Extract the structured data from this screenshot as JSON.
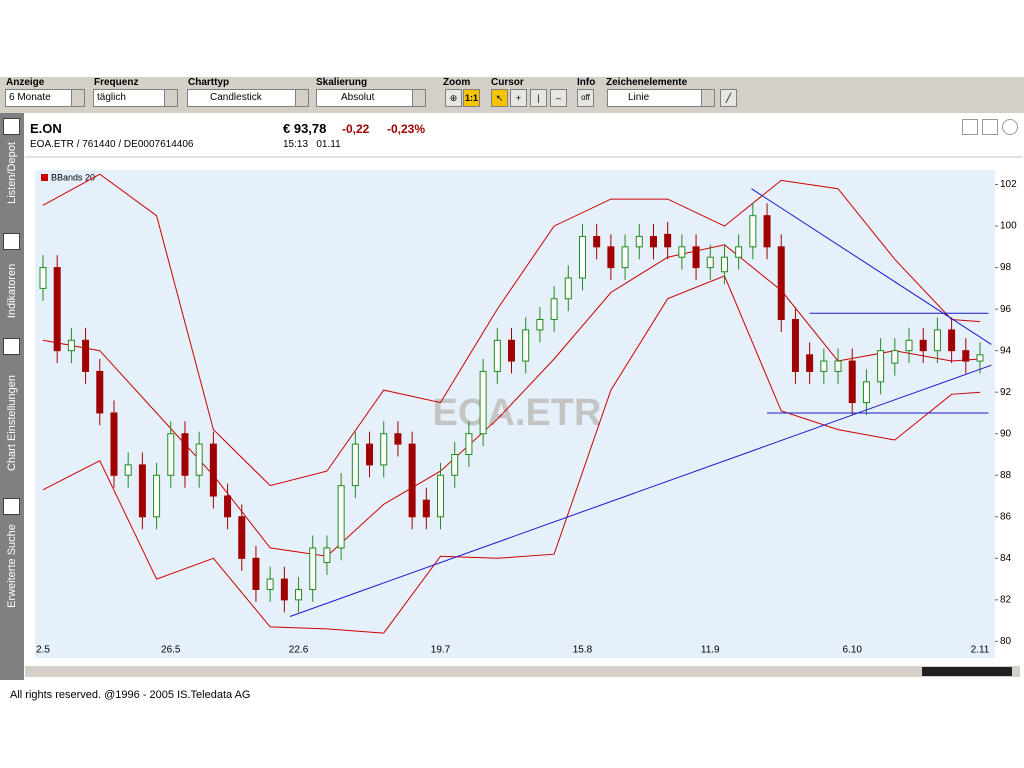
{
  "toolbar": {
    "labels": [
      "Anzeige",
      "Frequenz",
      "Charttyp",
      "Skalierung",
      "Zoom",
      "Cursor",
      "Info",
      "Zeichenelemente"
    ],
    "anzeige": "6 Monate",
    "frequenz": "täglich",
    "charttyp": "Candlestick",
    "skalierung": "Absolut",
    "zoom": "1:1",
    "info": "off",
    "zeichenelemente": "Linie"
  },
  "sidebar": [
    "Listen/Depot",
    "Indikatoren",
    "Chart Einstellungen",
    "Erweiterte Suche"
  ],
  "quote": {
    "name": "E.ON",
    "ids": "EOA.ETR  /  761440  /  DE0007614406",
    "price": "€ 93,78",
    "change": "-0,22",
    "change_pct": "-0,23%",
    "time": "15:13   01.11"
  },
  "footer": "All rights reserved. @1996 - 2005 IS.Teledata AG",
  "chart_data": {
    "type": "candlestick",
    "watermark": "EOA.ETR",
    "categories": [
      "2.5",
      null,
      null,
      null,
      null,
      null,
      null,
      null,
      null,
      "26.5",
      null,
      null,
      null,
      null,
      null,
      null,
      null,
      null,
      "22.6",
      null,
      null,
      null,
      null,
      null,
      null,
      null,
      null,
      null,
      "19.7",
      null,
      null,
      null,
      null,
      null,
      null,
      null,
      null,
      null,
      "15.8",
      null,
      null,
      null,
      null,
      null,
      null,
      null,
      null,
      "11.9",
      null,
      null,
      null,
      null,
      null,
      null,
      null,
      null,
      null,
      "6.10",
      null,
      null,
      null,
      null,
      null,
      null,
      null,
      null,
      "2.11"
    ],
    "open": [
      97,
      98,
      94,
      94.5,
      93,
      91,
      88,
      88.5,
      86,
      88,
      90,
      88,
      89.5,
      87,
      86,
      84,
      82.5,
      83,
      82,
      82.5,
      83.8,
      84.5,
      87.5,
      89.5,
      88.5,
      90,
      89.5,
      86.8,
      86,
      88,
      89,
      90,
      93,
      94.5,
      93.5,
      95,
      95.5,
      96.5,
      97.5,
      99.5,
      99,
      98,
      99,
      99.5,
      99.6,
      98.5,
      99,
      98,
      97.8,
      98.5,
      99,
      100.5,
      99,
      95.5,
      93.8,
      93,
      93,
      93.5,
      91.5,
      92.5,
      93.4,
      94,
      94.5,
      94,
      95,
      94,
      93.5
    ],
    "high": [
      98.6,
      98.6,
      95.1,
      95.1,
      93.6,
      91.6,
      89.1,
      89.1,
      88.6,
      90.6,
      90.6,
      90.1,
      90.1,
      87.6,
      86.6,
      84.6,
      83.6,
      83.6,
      83.1,
      85.1,
      85.1,
      88.1,
      90.1,
      90.1,
      90.6,
      90.6,
      90.1,
      87.4,
      88.6,
      89.6,
      90.6,
      93.6,
      95.1,
      95.1,
      95.6,
      96.1,
      97.1,
      98.1,
      100.1,
      100.1,
      99.6,
      99.6,
      100.1,
      100.1,
      100.2,
      99.6,
      99.6,
      99.1,
      99.1,
      99.6,
      101.1,
      101.1,
      99.6,
      96.1,
      94.4,
      94.1,
      94.1,
      94.1,
      93.1,
      94.6,
      94.6,
      95.1,
      95.1,
      95.6,
      95.6,
      94.6,
      94.4
    ],
    "low": [
      96.4,
      93.4,
      93.4,
      92.4,
      90.4,
      87.4,
      87.4,
      85.4,
      85.4,
      87.4,
      87.4,
      87.4,
      86.4,
      85.4,
      83.4,
      81.9,
      81.9,
      81.4,
      81.4,
      81.9,
      83.2,
      83.9,
      86.9,
      87.9,
      87.9,
      88.9,
      85.4,
      85.4,
      85.4,
      87.4,
      88.4,
      89.4,
      92.4,
      92.9,
      92.9,
      94.4,
      94.9,
      95.9,
      96.9,
      98.4,
      97.4,
      97.4,
      98.4,
      98.4,
      98.4,
      97.9,
      97.4,
      97.4,
      97.2,
      97.9,
      98.4,
      98.4,
      94.9,
      92.4,
      92.4,
      92.4,
      92.4,
      90.9,
      90.9,
      91.9,
      92.8,
      93.4,
      93.4,
      93.4,
      93.4,
      92.9,
      92.9
    ],
    "close": [
      98,
      94,
      94.5,
      93,
      91,
      88,
      88.5,
      86,
      88,
      90,
      88,
      89.5,
      87,
      86,
      84,
      82.5,
      83,
      82,
      82.5,
      84.5,
      84.5,
      87.5,
      89.5,
      88.5,
      90,
      89.5,
      86,
      86,
      88,
      89,
      90,
      93,
      94.5,
      93.5,
      95,
      95.5,
      96.5,
      97.5,
      99.5,
      99,
      98,
      99,
      99.5,
      99,
      99,
      99,
      98,
      98.5,
      98.5,
      99,
      100.5,
      99,
      95.5,
      93,
      93,
      93.5,
      93.5,
      91.5,
      92.5,
      94,
      94,
      94.5,
      94,
      95,
      94,
      93.5,
      93.8
    ],
    "up_color": "#1e8c1e",
    "down_color": "#a00000",
    "bands": {
      "name": "BBands 20",
      "color": "#cc0000",
      "x": [
        0,
        4,
        8,
        12,
        16,
        20,
        24,
        28,
        32,
        36,
        40,
        44,
        48,
        52,
        56,
        60,
        64,
        66
      ],
      "upper": [
        101,
        102.5,
        100.5,
        90.2,
        87.5,
        88.2,
        92.1,
        91.5,
        96,
        100,
        101.3,
        101.3,
        100,
        102.2,
        101.8,
        98.4,
        95.5,
        95.4
      ],
      "middle": [
        94.5,
        94,
        91,
        88,
        84.5,
        84.1,
        86.6,
        88.2,
        90.7,
        93.6,
        96.8,
        98.5,
        99.1,
        96.9,
        93.5,
        94,
        93.5,
        93.6
      ],
      "lower": [
        87.3,
        88.7,
        83,
        84,
        80.7,
        80.6,
        80.4,
        84.1,
        84,
        84.2,
        92.1,
        96.5,
        97.6,
        91.1,
        90.2,
        89.7,
        91.9,
        92
      ]
    },
    "trendlines": [
      {
        "color": "#1a1acc",
        "x": [
          17.4,
          66.8
        ],
        "y": [
          81.2,
          93.3
        ]
      },
      {
        "color": "#1a1acc",
        "x": [
          49.9,
          66.8
        ],
        "y": [
          101.8,
          94.3
        ]
      },
      {
        "color": "#1a1acc",
        "x": [
          54,
          66.6
        ],
        "y": [
          95.8,
          95.8
        ]
      },
      {
        "color": "#1a1acc",
        "x": [
          51,
          66.6
        ],
        "y": [
          91,
          91
        ]
      }
    ],
    "ylim": [
      79.2,
      102.7
    ],
    "yticks": [
      80,
      82,
      84,
      86,
      88,
      90,
      92,
      94,
      96,
      98,
      100,
      102
    ]
  }
}
